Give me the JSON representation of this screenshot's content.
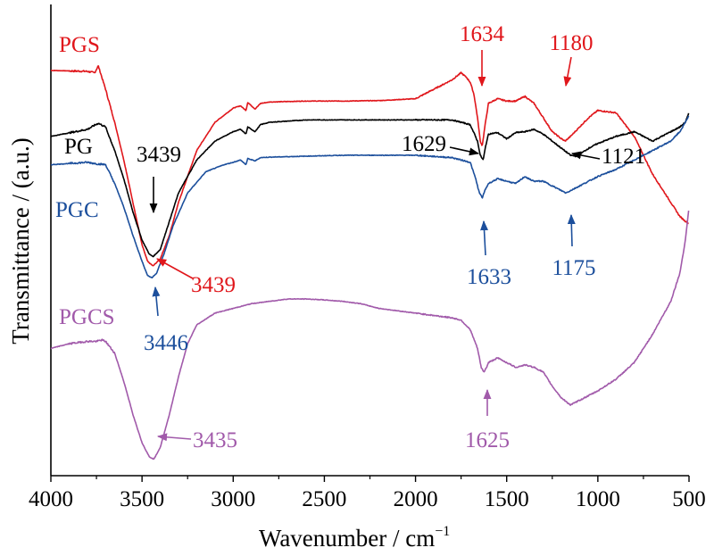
{
  "chart_data": {
    "type": "line",
    "title": "",
    "xlabel": "Wavenumber / cm",
    "xlabel_sup": "−1",
    "ylabel": "Transmittance / (a.u.)",
    "x_reversed": true,
    "xlim": [
      4000,
      500
    ],
    "ylim": [
      0,
      100
    ],
    "y_ticks_shown": false,
    "x_ticks": [
      4000,
      3500,
      3000,
      2500,
      2000,
      1500,
      1000,
      500
    ],
    "x_tick_labels": [
      "4000",
      "3500",
      "3000",
      "2500",
      "2000",
      "1500",
      "1000",
      "500"
    ],
    "series": [
      {
        "name": "PGS",
        "color": "#e0161b",
        "points": [
          [
            4000,
            86
          ],
          [
            3800,
            85.8
          ],
          [
            3760,
            85.5
          ],
          [
            3740,
            87
          ],
          [
            3720,
            84.5
          ],
          [
            3700,
            82
          ],
          [
            3650,
            75
          ],
          [
            3600,
            67
          ],
          [
            3550,
            58
          ],
          [
            3500,
            49
          ],
          [
            3470,
            45.5
          ],
          [
            3440,
            44.5
          ],
          [
            3400,
            46
          ],
          [
            3350,
            51
          ],
          [
            3300,
            58
          ],
          [
            3200,
            69
          ],
          [
            3100,
            75
          ],
          [
            3000,
            78
          ],
          [
            2960,
            78.5
          ],
          [
            2930,
            77.5
          ],
          [
            2920,
            79.2
          ],
          [
            2880,
            77.8
          ],
          [
            2850,
            79
          ],
          [
            2800,
            79.3
          ],
          [
            2600,
            79.5
          ],
          [
            2400,
            79.5
          ],
          [
            2200,
            79.6
          ],
          [
            2000,
            80
          ],
          [
            1800,
            84
          ],
          [
            1750,
            85.5
          ],
          [
            1720,
            84.5
          ],
          [
            1700,
            83.5
          ],
          [
            1680,
            81
          ],
          [
            1660,
            76
          ],
          [
            1645,
            71
          ],
          [
            1634,
            70
          ],
          [
            1620,
            74
          ],
          [
            1600,
            79
          ],
          [
            1550,
            80
          ],
          [
            1500,
            79.5
          ],
          [
            1450,
            79.5
          ],
          [
            1400,
            80.5
          ],
          [
            1350,
            79
          ],
          [
            1300,
            76
          ],
          [
            1250,
            73
          ],
          [
            1200,
            71.5
          ],
          [
            1180,
            71
          ],
          [
            1150,
            72
          ],
          [
            1100,
            74
          ],
          [
            1050,
            76
          ],
          [
            1000,
            77.5
          ],
          [
            900,
            77
          ],
          [
            800,
            72
          ],
          [
            700,
            64
          ],
          [
            600,
            58
          ],
          [
            550,
            55
          ],
          [
            520,
            54
          ],
          [
            500,
            53.5
          ]
        ]
      },
      {
        "name": "PG",
        "color": "#000000",
        "points": [
          [
            4000,
            72
          ],
          [
            3800,
            73.5
          ],
          [
            3740,
            74.8
          ],
          [
            3700,
            74
          ],
          [
            3650,
            69
          ],
          [
            3600,
            63
          ],
          [
            3550,
            56
          ],
          [
            3500,
            50
          ],
          [
            3460,
            47
          ],
          [
            3439,
            46.5
          ],
          [
            3400,
            48
          ],
          [
            3350,
            54
          ],
          [
            3300,
            60
          ],
          [
            3200,
            67
          ],
          [
            3100,
            71
          ],
          [
            3000,
            73
          ],
          [
            2960,
            73.5
          ],
          [
            2930,
            72.5
          ],
          [
            2920,
            74
          ],
          [
            2880,
            73
          ],
          [
            2850,
            74.5
          ],
          [
            2800,
            75
          ],
          [
            2600,
            75.5
          ],
          [
            2400,
            75.5
          ],
          [
            2200,
            75.5
          ],
          [
            2000,
            75.5
          ],
          [
            1800,
            75.5
          ],
          [
            1700,
            74.5
          ],
          [
            1660,
            71
          ],
          [
            1645,
            68
          ],
          [
            1629,
            67
          ],
          [
            1615,
            70
          ],
          [
            1600,
            72.5
          ],
          [
            1550,
            72.8
          ],
          [
            1500,
            71.5
          ],
          [
            1450,
            72.8
          ],
          [
            1400,
            73
          ],
          [
            1350,
            73.5
          ],
          [
            1300,
            72.5
          ],
          [
            1250,
            71
          ],
          [
            1200,
            69.5
          ],
          [
            1150,
            68
          ],
          [
            1121,
            67.8
          ],
          [
            1100,
            68.2
          ],
          [
            1050,
            69.5
          ],
          [
            1000,
            70.5
          ],
          [
            900,
            72
          ],
          [
            800,
            73
          ],
          [
            700,
            71
          ],
          [
            650,
            72
          ],
          [
            600,
            73
          ],
          [
            550,
            74
          ],
          [
            520,
            75
          ],
          [
            500,
            77
          ]
        ]
      },
      {
        "name": "PGC",
        "color": "#1c4f9c",
        "points": [
          [
            4000,
            66
          ],
          [
            3800,
            66.5
          ],
          [
            3750,
            66.2
          ],
          [
            3700,
            66
          ],
          [
            3650,
            62
          ],
          [
            3600,
            57
          ],
          [
            3550,
            51
          ],
          [
            3500,
            45.5
          ],
          [
            3470,
            42.5
          ],
          [
            3446,
            42
          ],
          [
            3420,
            43
          ],
          [
            3380,
            47
          ],
          [
            3330,
            53
          ],
          [
            3250,
            60
          ],
          [
            3150,
            64.5
          ],
          [
            3050,
            66
          ],
          [
            3000,
            66.5
          ],
          [
            2960,
            67
          ],
          [
            2930,
            66
          ],
          [
            2920,
            67.3
          ],
          [
            2880,
            66.8
          ],
          [
            2850,
            67.5
          ],
          [
            2800,
            67.6
          ],
          [
            2600,
            67.8
          ],
          [
            2400,
            68
          ],
          [
            2200,
            68
          ],
          [
            2000,
            68
          ],
          [
            1800,
            67.5
          ],
          [
            1700,
            66.5
          ],
          [
            1670,
            63
          ],
          [
            1650,
            60
          ],
          [
            1633,
            59
          ],
          [
            1620,
            60.5
          ],
          [
            1600,
            62
          ],
          [
            1550,
            63
          ],
          [
            1500,
            62.5
          ],
          [
            1450,
            62
          ],
          [
            1400,
            63.5
          ],
          [
            1380,
            63
          ],
          [
            1350,
            62.5
          ],
          [
            1300,
            62.5
          ],
          [
            1250,
            61.5
          ],
          [
            1200,
            60.5
          ],
          [
            1175,
            60
          ],
          [
            1150,
            60.5
          ],
          [
            1100,
            61.5
          ],
          [
            1050,
            62.5
          ],
          [
            1000,
            63.5
          ],
          [
            900,
            65
          ],
          [
            800,
            67
          ],
          [
            700,
            69
          ],
          [
            650,
            70
          ],
          [
            600,
            71
          ],
          [
            550,
            73
          ],
          [
            520,
            75
          ],
          [
            500,
            76.5
          ]
        ]
      },
      {
        "name": "PGCS",
        "color": "#a15aaa",
        "points": [
          [
            4000,
            27
          ],
          [
            3900,
            28
          ],
          [
            3800,
            28.5
          ],
          [
            3750,
            28.5
          ],
          [
            3720,
            28.8
          ],
          [
            3700,
            28.5
          ],
          [
            3650,
            26
          ],
          [
            3600,
            20
          ],
          [
            3550,
            13
          ],
          [
            3500,
            7
          ],
          [
            3460,
            4
          ],
          [
            3435,
            3.5
          ],
          [
            3400,
            6
          ],
          [
            3350,
            13
          ],
          [
            3300,
            21
          ],
          [
            3250,
            28
          ],
          [
            3200,
            32
          ],
          [
            3100,
            34.5
          ],
          [
            3000,
            35.5
          ],
          [
            2900,
            36.5
          ],
          [
            2800,
            37
          ],
          [
            2700,
            37.5
          ],
          [
            2600,
            37.5
          ],
          [
            2500,
            37.3
          ],
          [
            2400,
            37
          ],
          [
            2300,
            36.5
          ],
          [
            2200,
            35.5
          ],
          [
            2100,
            35
          ],
          [
            2000,
            34.5
          ],
          [
            1900,
            34
          ],
          [
            1800,
            33.5
          ],
          [
            1750,
            33
          ],
          [
            1700,
            31
          ],
          [
            1660,
            27
          ],
          [
            1640,
            23
          ],
          [
            1625,
            22
          ],
          [
            1610,
            23
          ],
          [
            1600,
            24
          ],
          [
            1550,
            25
          ],
          [
            1500,
            24
          ],
          [
            1450,
            23
          ],
          [
            1400,
            23.5
          ],
          [
            1350,
            23
          ],
          [
            1300,
            22
          ],
          [
            1250,
            19
          ],
          [
            1200,
            16.5
          ],
          [
            1150,
            15
          ],
          [
            1100,
            16
          ],
          [
            1050,
            17
          ],
          [
            1000,
            18
          ],
          [
            900,
            20.5
          ],
          [
            800,
            24
          ],
          [
            700,
            30
          ],
          [
            600,
            37
          ],
          [
            550,
            43
          ],
          [
            520,
            50
          ],
          [
            500,
            57
          ]
        ]
      }
    ],
    "annotations": [
      {
        "text": "1634",
        "series": "PGS",
        "x": 1634
      },
      {
        "text": "1180",
        "series": "PGS",
        "x": 1180
      },
      {
        "text": "3439",
        "series": "PG",
        "x": 3439
      },
      {
        "text": "1629",
        "series": "PG",
        "x": 1629
      },
      {
        "text": "1121",
        "series": "PG",
        "x": 1121
      },
      {
        "text": "3439",
        "series": "PGS",
        "x": 3439
      },
      {
        "text": "3446",
        "series": "PGC",
        "x": 3446
      },
      {
        "text": "1633",
        "series": "PGC",
        "x": 1633
      },
      {
        "text": "1175",
        "series": "PGC",
        "x": 1175
      },
      {
        "text": "3435",
        "series": "PGCS",
        "x": 3435
      },
      {
        "text": "1625",
        "series": "PGCS",
        "x": 1625
      }
    ]
  }
}
